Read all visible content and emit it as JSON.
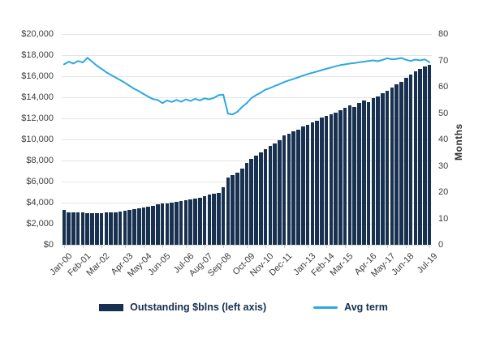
{
  "chart_data": {
    "type": "bar+line combo",
    "title": "",
    "x_range": [
      "Jan-00",
      "Jul-19"
    ],
    "total_months": 235,
    "x_tick_interval_months": 13,
    "x_tick_labels": [
      "Jan-00",
      "Feb-01",
      "Mar-02",
      "Apr-03",
      "May-04",
      "Jun-05",
      "Jul-06",
      "Aug-07",
      "Sep-08",
      "Oct-09",
      "Nov-10",
      "Dec-11",
      "Jan-13",
      "Feb-14",
      "Mar-15",
      "Apr-16",
      "May-17",
      "Jun-18",
      "Jul-19"
    ],
    "left_axis": {
      "min": 0,
      "max": 20000,
      "step": 2000,
      "tick_labels": [
        "$20,000",
        "$18,000",
        "$16,000",
        "$14,000",
        "$12,000",
        "$10,000",
        "$8,000",
        "$6,000",
        "$4,000",
        "$2,000",
        "$0"
      ]
    },
    "right_axis": {
      "label": "Months",
      "min": 0,
      "max": 80,
      "step": 10,
      "tick_labels": [
        "80",
        "70",
        "60",
        "50",
        "40",
        "30",
        "20",
        "10",
        "0"
      ]
    },
    "grid": "horizontal",
    "legend_position": "bottom",
    "resolution": "quarterly (2000 Q1 - 2019 Q3)",
    "series": [
      {
        "name": "Outstanding $blns (left axis)",
        "type": "bar",
        "axis": "left",
        "color": "#183150",
        "values": [
          3300,
          3100,
          3050,
          3080,
          3040,
          3010,
          3000,
          3020,
          3010,
          3040,
          3070,
          3100,
          3150,
          3220,
          3280,
          3350,
          3450,
          3550,
          3650,
          3720,
          3820,
          3890,
          3950,
          4020,
          4090,
          4150,
          4220,
          4300,
          4400,
          4500,
          4600,
          4750,
          4850,
          4950,
          5500,
          6400,
          6600,
          6850,
          7250,
          7800,
          8150,
          8450,
          8750,
          9050,
          9350,
          9650,
          9950,
          10350,
          10550,
          10750,
          10950,
          11200,
          11400,
          11600,
          11800,
          12050,
          12250,
          12400,
          12550,
          12750,
          13000,
          13200,
          13100,
          13450,
          13700,
          13550,
          13900,
          14100,
          14350,
          14650,
          14900,
          15200,
          15500,
          15850,
          16150,
          16450,
          16700,
          16950,
          17100
        ]
      },
      {
        "name": "Avg term",
        "type": "line",
        "axis": "right",
        "color": "#2ca8e0",
        "values": [
          68.5,
          69.5,
          68.8,
          69.8,
          69.2,
          71.0,
          69.5,
          68.0,
          66.8,
          65.5,
          64.5,
          63.5,
          62.5,
          61.5,
          60.3,
          59.2,
          58.3,
          57.2,
          56.2,
          55.3,
          55.0,
          53.8,
          54.8,
          54.2,
          55.0,
          54.3,
          55.2,
          54.6,
          55.4,
          54.8,
          55.6,
          55.2,
          55.8,
          56.8,
          57.0,
          49.8,
          49.5,
          50.5,
          52.3,
          53.8,
          55.7,
          56.8,
          57.8,
          58.9,
          59.5,
          60.3,
          61.0,
          61.8,
          62.4,
          63.0,
          63.6,
          64.2,
          64.8,
          65.3,
          65.8,
          66.3,
          66.8,
          67.3,
          67.8,
          68.2,
          68.5,
          68.8,
          69.0,
          69.3,
          69.5,
          69.8,
          70.0,
          69.7,
          70.2,
          70.8,
          70.4,
          70.6,
          70.9,
          70.2,
          69.8,
          70.3,
          70.0,
          70.4,
          69.3
        ]
      }
    ]
  },
  "legend": {
    "bar_label": "Outstanding $blns (left axis)",
    "line_label": "Avg term"
  },
  "axis_titles": {
    "right": "Months"
  }
}
